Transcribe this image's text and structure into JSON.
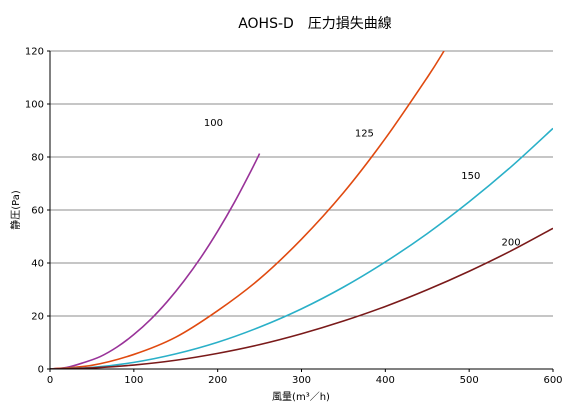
{
  "chart_data": {
    "type": "line",
    "title": "AOHS-D　圧力損失曲線",
    "xlabel": "風量(m³／h)",
    "ylabel": "静圧(Pa)",
    "xlim": [
      0,
      600
    ],
    "ylim": [
      0,
      120
    ],
    "x_ticks": [
      "0",
      "100",
      "200",
      "300",
      "400",
      "500",
      "600"
    ],
    "y_ticks": [
      "0",
      "20",
      "40",
      "60",
      "80",
      "100",
      "120"
    ],
    "grid": "horizontal",
    "legend": "none",
    "series": [
      {
        "name": "100",
        "color": "#993399",
        "x": [
          0,
          20,
          40,
          60,
          80,
          100,
          120,
          140,
          160,
          180,
          200,
          220,
          240,
          250
        ],
        "y": [
          0,
          0.6,
          2.4,
          4.7,
          8.3,
          13.0,
          18.7,
          25.5,
          33.3,
          42.1,
          52.0,
          62.9,
          74.9,
          81.3
        ]
      },
      {
        "name": "125",
        "color": "#e04a10",
        "x": [
          0,
          50,
          100,
          150,
          200,
          250,
          300,
          350,
          400,
          450,
          470
        ],
        "y": [
          0,
          1.4,
          5.5,
          12.0,
          22.0,
          34.0,
          49.0,
          66.5,
          87.0,
          110.0,
          120.0
        ]
      },
      {
        "name": "150",
        "color": "#2ab0c8",
        "x": [
          0,
          50,
          100,
          150,
          200,
          250,
          300,
          350,
          400,
          450,
          500,
          550,
          600
        ],
        "y": [
          0,
          0.6,
          2.5,
          5.7,
          10.1,
          15.8,
          22.7,
          30.9,
          40.4,
          51.1,
          63.1,
          76.3,
          90.8
        ]
      },
      {
        "name": "200",
        "color": "#7a1a1a",
        "x": [
          0,
          50,
          100,
          150,
          200,
          250,
          300,
          350,
          400,
          450,
          500,
          550,
          600
        ],
        "y": [
          0,
          0.4,
          1.5,
          3.3,
          5.9,
          9.2,
          13.3,
          18.1,
          23.6,
          29.9,
          36.9,
          44.6,
          53.1
        ]
      }
    ],
    "annotations": [
      {
        "text": "100",
        "x": 195,
        "y": 93
      },
      {
        "text": "125",
        "x": 375,
        "y": 89
      },
      {
        "text": "150",
        "x": 502,
        "y": 73
      },
      {
        "text": "200",
        "x": 550,
        "y": 48
      }
    ]
  }
}
